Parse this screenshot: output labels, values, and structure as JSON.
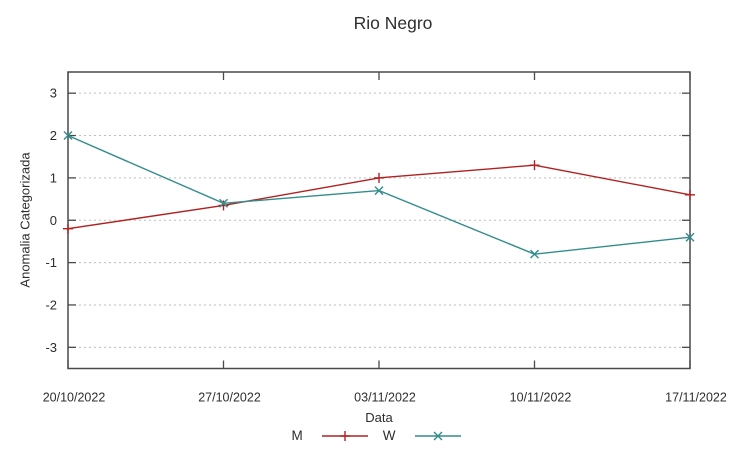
{
  "chart_data": {
    "type": "line",
    "title": "Rio Negro",
    "xlabel": "Data",
    "ylabel": "Anomalia Categorizada",
    "categories": [
      "20/10/2022",
      "27/10/2022",
      "03/11/2022",
      "10/11/2022",
      "17/11/2022"
    ],
    "series": [
      {
        "name": "M",
        "color": "#b22020",
        "marker": "plus",
        "values": [
          -0.2,
          0.35,
          1.0,
          1.3,
          0.6
        ]
      },
      {
        "name": "W",
        "color": "#338c8c",
        "marker": "cross",
        "values": [
          2.0,
          0.4,
          0.7,
          -0.8,
          -0.4
        ]
      }
    ],
    "ylim": [
      -3.5,
      3.5
    ],
    "yticks": [
      -3,
      -2,
      -1,
      0,
      1,
      2,
      3
    ],
    "grid": "horizontal-dotted",
    "legend_position": "bottom-center"
  },
  "colors": {
    "axis": "#4a4a4a",
    "grid": "#bdbdbd",
    "text": "#2e2e2e",
    "background": "#ffffff"
  }
}
